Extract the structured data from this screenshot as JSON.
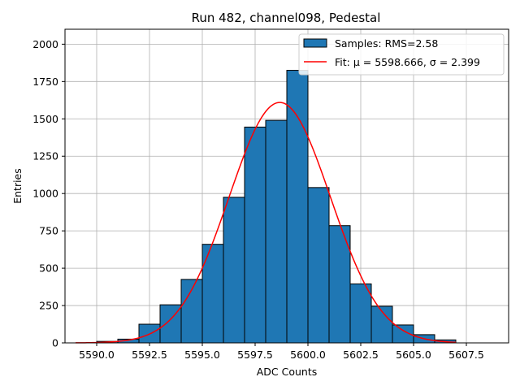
{
  "chart_data": {
    "type": "bar",
    "title": "Run 482, channel098, Pedestal",
    "xlabel": "ADC Counts",
    "ylabel": "Entries",
    "xlim": [
      5588.5,
      5609.5
    ],
    "ylim": [
      0,
      2100
    ],
    "grid": true,
    "legend_placement": "top-right",
    "bar_color": "#1f77b4",
    "fit_color": "#ff0000",
    "bin_width": 1.0,
    "bin_lefts": [
      5590,
      5591,
      5592,
      5593,
      5594,
      5595,
      5596,
      5597,
      5598,
      5599,
      5600,
      5601,
      5602,
      5603,
      5604,
      5605,
      5606
    ],
    "counts": [
      10,
      25,
      125,
      255,
      425,
      660,
      975,
      1445,
      1490,
      1825,
      1040,
      785,
      395,
      245,
      120,
      55,
      20
    ],
    "x_ticks": [
      "5590.0",
      "5592.5",
      "5595.0",
      "5597.5",
      "5600.0",
      "5602.5",
      "5605.0",
      "5607.5"
    ],
    "x_tick_values": [
      5590.0,
      5592.5,
      5595.0,
      5597.5,
      5600.0,
      5602.5,
      5605.0,
      5607.5
    ],
    "y_ticks": [
      "0",
      "250",
      "500",
      "750",
      "1000",
      "1250",
      "1500",
      "1750",
      "2000"
    ],
    "y_tick_values": [
      0,
      250,
      500,
      750,
      1000,
      1250,
      1500,
      1750,
      2000
    ],
    "fit": {
      "mu": 5598.666,
      "sigma": 2.399,
      "amplitude": 1610,
      "x_range": [
        5589,
        5607
      ]
    },
    "legend": {
      "samples": "Samples: RMS=2.58",
      "fit": "Fit: μ = 5598.666, σ = 2.399"
    }
  }
}
